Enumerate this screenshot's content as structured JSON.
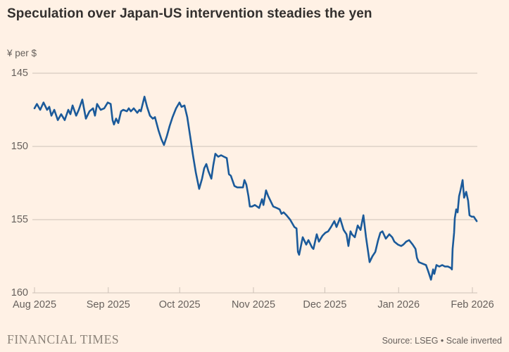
{
  "header": {
    "title": "Speculation over Japan-US intervention steadies the yen"
  },
  "footer": {
    "brand": "FINANCIAL TIMES",
    "source": "Source: LSEG • Scale inverted"
  },
  "colors": {
    "background": "#FFF1E5",
    "line": "#1B5A9A",
    "grid": "#CCC1B7",
    "axis_text": "#66605C",
    "title_text": "#33302E"
  },
  "chart_data": {
    "type": "line",
    "title": "Speculation over Japan-US intervention steadies the yen",
    "unit_label": "¥ per $",
    "ylabel": "Yen per US dollar",
    "y_axis": {
      "ticks": [
        "145",
        "150",
        "155",
        "160"
      ],
      "tick_values": [
        145,
        150,
        155,
        160
      ],
      "min": 145,
      "max": 160,
      "inverted": true,
      "grid": true
    },
    "x_axis": {
      "tick_labels": [
        "Aug 2025",
        "Sep 2025",
        "Oct 2025",
        "Nov 2025",
        "Dec 2025",
        "Jan 2026",
        "Feb 2026"
      ],
      "tick_days": [
        0,
        31,
        61,
        92,
        122,
        153,
        184
      ],
      "start_day_label": "Aug 1 2025",
      "span_days": 186
    },
    "legend_position": "none",
    "series": [
      {
        "name": "Yen per US dollar",
        "color": "#1B5A9A",
        "points": [
          [
            0,
            147.4
          ],
          [
            1,
            147.1
          ],
          [
            2.4,
            147.5
          ],
          [
            3.8,
            147.0
          ],
          [
            5.3,
            147.5
          ],
          [
            6.2,
            147.3
          ],
          [
            7.1,
            147.9
          ],
          [
            8.3,
            147.5
          ],
          [
            9.8,
            148.2
          ],
          [
            11.2,
            147.8
          ],
          [
            12.7,
            148.2
          ],
          [
            14.2,
            147.5
          ],
          [
            15.1,
            147.8
          ],
          [
            16,
            147.2
          ],
          [
            17.5,
            147.9
          ],
          [
            18.6,
            147.5
          ],
          [
            20.1,
            146.8
          ],
          [
            21.6,
            148.1
          ],
          [
            23.1,
            147.6
          ],
          [
            24.6,
            147.4
          ],
          [
            25.4,
            147.9
          ],
          [
            26.3,
            147.1
          ],
          [
            27.8,
            147.5
          ],
          [
            29.3,
            147.4
          ],
          [
            30.8,
            147.0
          ],
          [
            32,
            147.1
          ],
          [
            32.8,
            148.2
          ],
          [
            33.4,
            148.5
          ],
          [
            34.3,
            148.1
          ],
          [
            35.2,
            148.4
          ],
          [
            36.4,
            147.6
          ],
          [
            37.3,
            147.5
          ],
          [
            38.8,
            147.6
          ],
          [
            39.6,
            147.4
          ],
          [
            40.5,
            147.6
          ],
          [
            41.7,
            147.4
          ],
          [
            43.2,
            147.7
          ],
          [
            44.1,
            147.5
          ],
          [
            44.7,
            147.6
          ],
          [
            46.2,
            146.6
          ],
          [
            47.3,
            147.3
          ],
          [
            48.5,
            147.9
          ],
          [
            49.7,
            148.1
          ],
          [
            50.6,
            148.0
          ],
          [
            52.1,
            148.9
          ],
          [
            53.3,
            149.5
          ],
          [
            54.4,
            149.9
          ],
          [
            55.6,
            149.3
          ],
          [
            56.8,
            148.6
          ],
          [
            58,
            148.0
          ],
          [
            59.5,
            147.4
          ],
          [
            60.9,
            147.0
          ],
          [
            61.8,
            147.3
          ],
          [
            63,
            147.2
          ],
          [
            64.2,
            148.0
          ],
          [
            65.4,
            149.3
          ],
          [
            66.6,
            150.6
          ],
          [
            67.8,
            151.8
          ],
          [
            69.2,
            152.9
          ],
          [
            70.4,
            152.2
          ],
          [
            71.3,
            151.5
          ],
          [
            72.2,
            151.2
          ],
          [
            73.1,
            151.7
          ],
          [
            74.3,
            152.2
          ],
          [
            75.1,
            151.3
          ],
          [
            76,
            150.5
          ],
          [
            77.2,
            150.7
          ],
          [
            78.4,
            150.6
          ],
          [
            79.6,
            150.7
          ],
          [
            80.8,
            150.8
          ],
          [
            81.7,
            151.9
          ],
          [
            82.5,
            152.0
          ],
          [
            84,
            152.7
          ],
          [
            85.2,
            152.8
          ],
          [
            86.4,
            152.8
          ],
          [
            87.6,
            152.8
          ],
          [
            88.2,
            152.3
          ],
          [
            89,
            152.6
          ],
          [
            89.9,
            153.4
          ],
          [
            90.5,
            154.1
          ],
          [
            91.4,
            154.1
          ],
          [
            92.6,
            154.0
          ],
          [
            93.5,
            154.1
          ],
          [
            94.4,
            154.2
          ],
          [
            95.6,
            153.6
          ],
          [
            96.2,
            154.0
          ],
          [
            97.3,
            153.0
          ],
          [
            98.2,
            153.4
          ],
          [
            100.3,
            154.1
          ],
          [
            101.8,
            154.2
          ],
          [
            103,
            154.3
          ],
          [
            103.8,
            154.6
          ],
          [
            104.7,
            154.5
          ],
          [
            105.9,
            154.7
          ],
          [
            107.4,
            155.0
          ],
          [
            109.2,
            155.5
          ],
          [
            110.1,
            155.6
          ],
          [
            110.7,
            157.2
          ],
          [
            111.2,
            157.4
          ],
          [
            112.7,
            156.2
          ],
          [
            114.2,
            156.7
          ],
          [
            115.1,
            156.4
          ],
          [
            116.6,
            156.9
          ],
          [
            117.2,
            157.0
          ],
          [
            118.6,
            156.0
          ],
          [
            119.5,
            156.5
          ],
          [
            121,
            156.1
          ],
          [
            122.2,
            155.9
          ],
          [
            123.4,
            155.8
          ],
          [
            124.6,
            155.5
          ],
          [
            126,
            155.1
          ],
          [
            126.9,
            155.5
          ],
          [
            128.4,
            154.9
          ],
          [
            129.9,
            155.7
          ],
          [
            131.1,
            156.0
          ],
          [
            131.9,
            156.8
          ],
          [
            132.8,
            155.8
          ],
          [
            133.4,
            156.0
          ],
          [
            134.6,
            156.2
          ],
          [
            135.8,
            155.4
          ],
          [
            137,
            155.7
          ],
          [
            138.2,
            154.7
          ],
          [
            139.3,
            156.2
          ],
          [
            140.8,
            157.9
          ],
          [
            142,
            157.5
          ],
          [
            143.2,
            157.2
          ],
          [
            144.4,
            156.4
          ],
          [
            145.3,
            155.9
          ],
          [
            146.2,
            155.8
          ],
          [
            147.6,
            156.3
          ],
          [
            149.1,
            156.0
          ],
          [
            150.3,
            156.2
          ],
          [
            151.2,
            156.5
          ],
          [
            152.7,
            156.7
          ],
          [
            154.1,
            156.8
          ],
          [
            155,
            156.7
          ],
          [
            156.2,
            156.5
          ],
          [
            157.4,
            156.4
          ],
          [
            158.9,
            156.7
          ],
          [
            160.1,
            157.0
          ],
          [
            160.7,
            157.6
          ],
          [
            161.5,
            157.9
          ],
          [
            163,
            158.0
          ],
          [
            164.5,
            158.1
          ],
          [
            165.4,
            158.5
          ],
          [
            166.6,
            159.1
          ],
          [
            167.5,
            158.4
          ],
          [
            168,
            158.7
          ],
          [
            168.9,
            158.1
          ],
          [
            170.1,
            158.2
          ],
          [
            171.3,
            158.1
          ],
          [
            172.5,
            158.2
          ],
          [
            173.7,
            158.2
          ],
          [
            174.9,
            158.3
          ],
          [
            175.4,
            158.4
          ],
          [
            175.7,
            157.0
          ],
          [
            176.3,
            155.9
          ],
          [
            176.6,
            154.9
          ],
          [
            177.2,
            154.3
          ],
          [
            177.8,
            154.5
          ],
          [
            178.4,
            153.4
          ],
          [
            179,
            153.0
          ],
          [
            179.9,
            152.3
          ],
          [
            180.5,
            153.5
          ],
          [
            181.4,
            153.1
          ],
          [
            182.2,
            153.7
          ],
          [
            182.8,
            154.7
          ],
          [
            183.7,
            154.8
          ],
          [
            184.6,
            154.8
          ],
          [
            185.8,
            155.1
          ]
        ]
      }
    ]
  }
}
